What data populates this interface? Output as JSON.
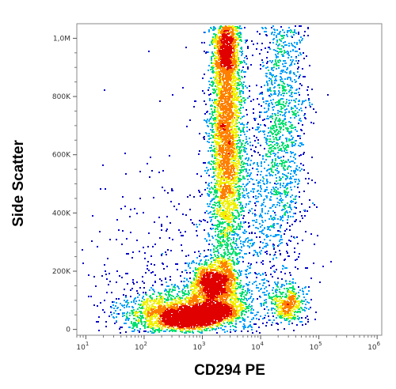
{
  "chart_data": {
    "type": "scatter",
    "subtype": "flow-cytometry density plot",
    "xlabel": "CD294 PE",
    "ylabel": "Side Scatter",
    "x_scale": "log",
    "xlim": [
      7,
      1200000
    ],
    "ylim": [
      -20000,
      1050000
    ],
    "x_ticks": [
      {
        "value": 10,
        "base": "10",
        "exp": "1"
      },
      {
        "value": 100,
        "base": "10",
        "exp": "2"
      },
      {
        "value": 1000,
        "base": "10",
        "exp": "3"
      },
      {
        "value": 10000,
        "base": "10",
        "exp": "4"
      },
      {
        "value": 100000,
        "base": "10",
        "exp": "5"
      },
      {
        "value": 1000000,
        "base": "10",
        "exp": "6"
      }
    ],
    "y_ticks": [
      {
        "value": 0,
        "label": "0"
      },
      {
        "value": 200000,
        "label": "200K"
      },
      {
        "value": 400000,
        "label": "400K"
      },
      {
        "value": 600000,
        "label": "600K"
      },
      {
        "value": 800000,
        "label": "800K"
      },
      {
        "value": 1000000,
        "label": "1,0M"
      }
    ],
    "grid": false,
    "color_scale": [
      "#0000c8",
      "#00a0ff",
      "#00e070",
      "#f0f000",
      "#ff8000",
      "#e00000"
    ],
    "populations": [
      {
        "x_center": 900,
        "y_center": 55000,
        "peak_density": "highest"
      },
      {
        "x_center": 2500,
        "y_center": 150000,
        "peak_density": "medium"
      },
      {
        "x_center": 2800,
        "y_center": 680000,
        "peak_density": "high"
      },
      {
        "x_center": 18000,
        "y_center": 650000,
        "peak_density": "low"
      },
      {
        "x_center": 35000,
        "y_center": 100000,
        "peak_density": "low"
      }
    ]
  }
}
